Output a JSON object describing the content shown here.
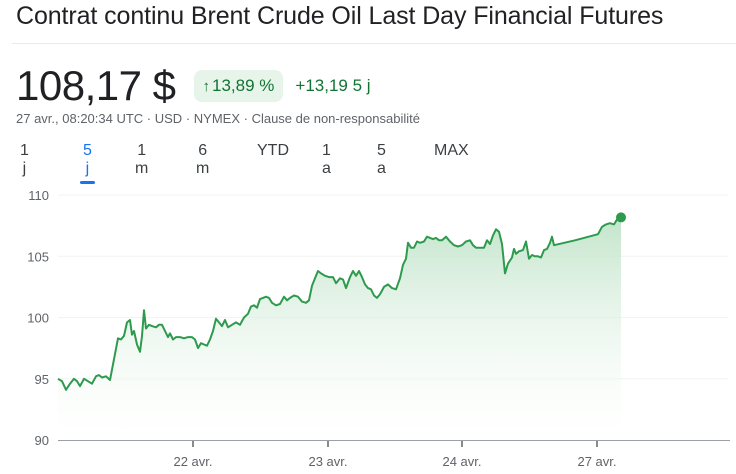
{
  "header": {
    "title": "Contrat continu Brent Crude Oil Last Day Financial Futures"
  },
  "quote": {
    "price": "108,17 $",
    "change_percent": "13,89 %",
    "change_arrow": "↑",
    "change_abs": "+13,19",
    "change_period": "5 j",
    "timestamp": "27 avr., 08:20:34 UTC",
    "currency": "USD",
    "exchange": "NYMEX",
    "disclaimer_link": "Clause de non-responsabilité",
    "separator": " · "
  },
  "range_tabs": [
    {
      "label": "1 j",
      "active": false
    },
    {
      "label": "5 j",
      "active": true
    },
    {
      "label": "1 m",
      "active": false
    },
    {
      "label": "6 m",
      "active": false
    },
    {
      "label": "YTD",
      "active": false
    },
    {
      "label": "1 a",
      "active": false
    },
    {
      "label": "5 a",
      "active": false
    },
    {
      "label": "MAX",
      "active": false
    }
  ],
  "colors": {
    "line": "#2e9a4e",
    "fill_top": "#bfe3c8",
    "positive": "#137333",
    "chip_bg": "#e6f4ea",
    "active_tab": "#1a73e8",
    "grid": "#f1f3f4",
    "axis": "#9aa0a6"
  },
  "chart_data": {
    "type": "area",
    "title": "Contrat continu Brent Crude Oil Last Day Financial Futures",
    "period": "5 j",
    "xlabel": "",
    "ylabel": "",
    "ylim": [
      90,
      110
    ],
    "yticks": [
      90,
      95,
      100,
      105,
      110
    ],
    "xtick_labels": [
      "22 avr.",
      "23 avr.",
      "24 avr.",
      "27 avr."
    ],
    "grid": true,
    "legend": "none",
    "last_value": 108.17,
    "series": [
      {
        "name": "Brent Crude Oil",
        "points": [
          [
            58,
            95.0
          ],
          [
            62,
            94.8
          ],
          [
            66,
            94.1
          ],
          [
            70,
            94.6
          ],
          [
            74,
            95.0
          ],
          [
            77,
            94.8
          ],
          [
            80,
            94.4
          ],
          [
            84,
            95.0
          ],
          [
            88,
            94.8
          ],
          [
            92,
            94.6
          ],
          [
            96,
            95.2
          ],
          [
            99,
            95.3
          ],
          [
            102,
            95.1
          ],
          [
            106,
            95.2
          ],
          [
            110,
            94.9
          ],
          [
            114,
            96.6
          ],
          [
            118,
            98.3
          ],
          [
            121,
            98.2
          ],
          [
            124,
            98.5
          ],
          [
            127,
            99.6
          ],
          [
            130,
            99.8
          ],
          [
            132,
            98.6
          ],
          [
            134,
            98.9
          ],
          [
            137,
            97.8
          ],
          [
            140,
            97.2
          ],
          [
            142,
            98.5
          ],
          [
            144,
            100.6
          ],
          [
            146,
            99.1
          ],
          [
            149,
            99.4
          ],
          [
            152,
            99.3
          ],
          [
            156,
            99.2
          ],
          [
            159,
            99.4
          ],
          [
            162,
            99.4
          ],
          [
            165,
            98.9
          ],
          [
            168,
            98.4
          ],
          [
            170,
            98.7
          ],
          [
            173,
            98.2
          ],
          [
            176,
            98.4
          ],
          [
            180,
            98.4
          ],
          [
            184,
            98.3
          ],
          [
            188,
            98.4
          ],
          [
            192,
            98.4
          ],
          [
            195,
            98.2
          ],
          [
            198,
            97.5
          ],
          [
            201,
            97.9
          ],
          [
            204,
            97.8
          ],
          [
            207,
            97.7
          ],
          [
            210,
            98.2
          ],
          [
            213,
            98.9
          ],
          [
            216,
            99.9
          ],
          [
            219,
            99.6
          ],
          [
            222,
            99.3
          ],
          [
            225,
            99.8
          ],
          [
            228,
            99.2
          ],
          [
            232,
            99.4
          ],
          [
            236,
            99.6
          ],
          [
            240,
            99.4
          ],
          [
            244,
            100.0
          ],
          [
            248,
            100.3
          ],
          [
            251,
            100.9
          ],
          [
            254,
            101.0
          ],
          [
            257,
            100.8
          ],
          [
            260,
            101.5
          ],
          [
            263,
            101.6
          ],
          [
            266,
            101.7
          ],
          [
            269,
            101.6
          ],
          [
            272,
            101.2
          ],
          [
            276,
            101.0
          ],
          [
            280,
            101.1
          ],
          [
            284,
            101.7
          ],
          [
            287,
            101.4
          ],
          [
            290,
            101.6
          ],
          [
            294,
            101.8
          ],
          [
            298,
            101.7
          ],
          [
            302,
            101.3
          ],
          [
            306,
            101.2
          ],
          [
            309,
            101.4
          ],
          [
            312,
            102.6
          ],
          [
            315,
            103.2
          ],
          [
            318,
            103.8
          ],
          [
            321,
            103.6
          ],
          [
            325,
            103.4
          ],
          [
            329,
            103.3
          ],
          [
            333,
            103.3
          ],
          [
            336,
            102.8
          ],
          [
            340,
            103.2
          ],
          [
            343,
            103.1
          ],
          [
            346,
            102.4
          ],
          [
            350,
            103.3
          ],
          [
            353,
            103.8
          ],
          [
            356,
            103.4
          ],
          [
            359,
            103.8
          ],
          [
            362,
            103.3
          ],
          [
            365,
            102.7
          ],
          [
            368,
            102.4
          ],
          [
            371,
            102.3
          ],
          [
            374,
            101.8
          ],
          [
            377,
            101.6
          ],
          [
            380,
            101.9
          ],
          [
            384,
            102.5
          ],
          [
            388,
            102.7
          ],
          [
            392,
            102.4
          ],
          [
            396,
            102.3
          ],
          [
            400,
            103.2
          ],
          [
            403,
            104.3
          ],
          [
            406,
            104.8
          ],
          [
            408,
            106.1
          ],
          [
            411,
            105.7
          ],
          [
            414,
            105.7
          ],
          [
            417,
            106.2
          ],
          [
            420,
            106.1
          ],
          [
            424,
            106.2
          ],
          [
            427,
            106.6
          ],
          [
            430,
            106.5
          ],
          [
            433,
            106.4
          ],
          [
            436,
            106.5
          ],
          [
            439,
            106.3
          ],
          [
            442,
            106.3
          ],
          [
            446,
            106.6
          ],
          [
            450,
            106.2
          ],
          [
            454,
            105.9
          ],
          [
            458,
            105.8
          ],
          [
            462,
            105.9
          ],
          [
            466,
            106.2
          ],
          [
            470,
            106.3
          ],
          [
            473,
            105.9
          ],
          [
            476,
            105.7
          ],
          [
            480,
            105.7
          ],
          [
            484,
            105.7
          ],
          [
            487,
            106.3
          ],
          [
            490,
            106.0
          ],
          [
            493,
            106.7
          ],
          [
            496,
            107.2
          ],
          [
            499,
            107.0
          ],
          [
            502,
            106.0
          ],
          [
            505,
            103.6
          ],
          [
            508,
            104.4
          ],
          [
            512,
            104.9
          ],
          [
            514,
            105.6
          ],
          [
            516,
            105.2
          ],
          [
            519,
            105.4
          ],
          [
            523,
            105.5
          ],
          [
            526,
            106.2
          ],
          [
            529,
            104.8
          ],
          [
            532,
            105.1
          ],
          [
            535,
            105.0
          ],
          [
            538,
            105.0
          ],
          [
            541,
            104.9
          ],
          [
            544,
            105.5
          ],
          [
            547,
            105.6
          ],
          [
            550,
            106.1
          ],
          [
            552,
            106.6
          ],
          [
            554,
            105.9
          ],
          [
            575,
            106.3
          ],
          [
            598,
            106.8
          ],
          [
            602,
            107.4
          ],
          [
            606,
            107.6
          ],
          [
            610,
            107.7
          ],
          [
            614,
            107.6
          ],
          [
            617,
            108.0
          ],
          [
            621,
            108.17
          ]
        ]
      }
    ]
  }
}
